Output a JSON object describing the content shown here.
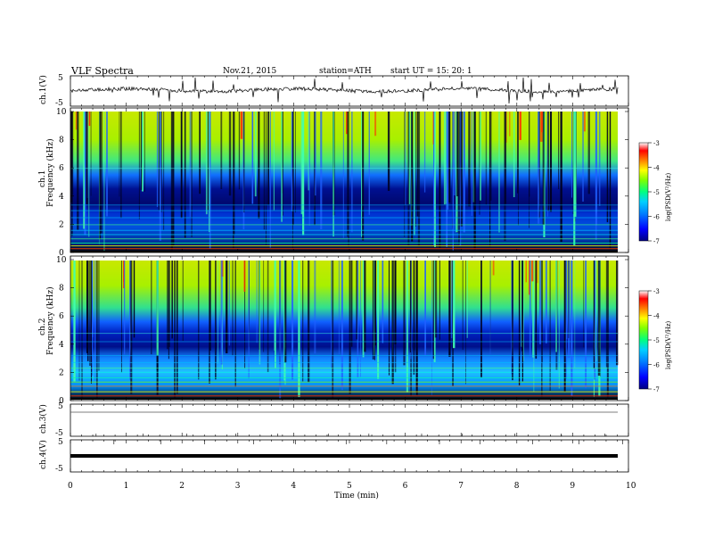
{
  "header": {
    "title": "VLF Spectra",
    "date": "Nov.21, 2015",
    "station": "station=ATH",
    "start": "start  UT  =  15: 20: 1"
  },
  "x_axis": {
    "label": "Time (min)",
    "ticks": [
      "0",
      "1",
      "2",
      "3",
      "4",
      "5",
      "6",
      "7",
      "8",
      "9",
      "10"
    ]
  },
  "panels": {
    "ch1_wave": {
      "ylabel": "ch.1(V)",
      "ticks": [
        "5",
        "-5"
      ]
    },
    "ch1_spec": {
      "ylabel": "ch.1\nFrequency (kHz)",
      "ylabel_top": "ch.1",
      "ylabel_bottom": "Frequency (kHz)",
      "ticks": [
        "10",
        "8",
        "6",
        "4",
        "2",
        "0"
      ]
    },
    "ch2_spec": {
      "ylabel_top": "ch.2",
      "ylabel_bottom": "Frequency (kHz)",
      "ticks": [
        "10",
        "8",
        "6",
        "4",
        "2",
        "0"
      ]
    },
    "ch3_wave": {
      "ylabel": "ch.3(V)",
      "ticks": [
        "5",
        "-5"
      ]
    },
    "ch4_wave": {
      "ylabel": "ch.4(V)",
      "ticks": [
        "5",
        "-5"
      ]
    }
  },
  "colorbar": {
    "label": "log(PSD(V²/Hz)",
    "ticks": [
      "-3",
      "-4",
      "-5",
      "-6",
      "-7"
    ],
    "colors": [
      "#000080",
      "#0000ff",
      "#0080ff",
      "#00c0ff",
      "#00ff80",
      "#80ff00",
      "#ffff00",
      "#ff8000",
      "#ff0000",
      "#ffffff"
    ]
  },
  "chart_data": [
    {
      "type": "line",
      "name": "ch.1(V)",
      "xlabel": "Time (min)",
      "ylabel": "ch.1(V)",
      "xlim": [
        0,
        10
      ],
      "ylim": [
        -5,
        5
      ],
      "baseline": 0,
      "note_visible": "noisy waveform ~ -0.3 to 0.5 V with spikes"
    },
    {
      "type": "heatmap",
      "xlabel": "Time (min)",
      "ylabel": "Frequency (kHz)",
      "channel": "ch.1",
      "xlim": [
        0,
        10
      ],
      "ylim": [
        0,
        10
      ],
      "zlim": [
        -7,
        -3
      ],
      "data_extent_min": 9.8
    },
    {
      "type": "heatmap",
      "xlabel": "Time (min)",
      "ylabel": "Frequency (kHz)",
      "channel": "ch.2",
      "xlim": [
        0,
        10
      ],
      "ylim": [
        0,
        10
      ],
      "zlim": [
        -7,
        -3
      ],
      "data_extent_min": 9.8
    },
    {
      "type": "line",
      "name": "ch.3(V)",
      "xlim": [
        0,
        10
      ],
      "ylim": [
        -5,
        5
      ],
      "baseline": 0
    },
    {
      "type": "line",
      "name": "ch.4(V)",
      "xlim": [
        0,
        10
      ],
      "ylim": [
        -5,
        5
      ],
      "baseline": 0
    }
  ]
}
